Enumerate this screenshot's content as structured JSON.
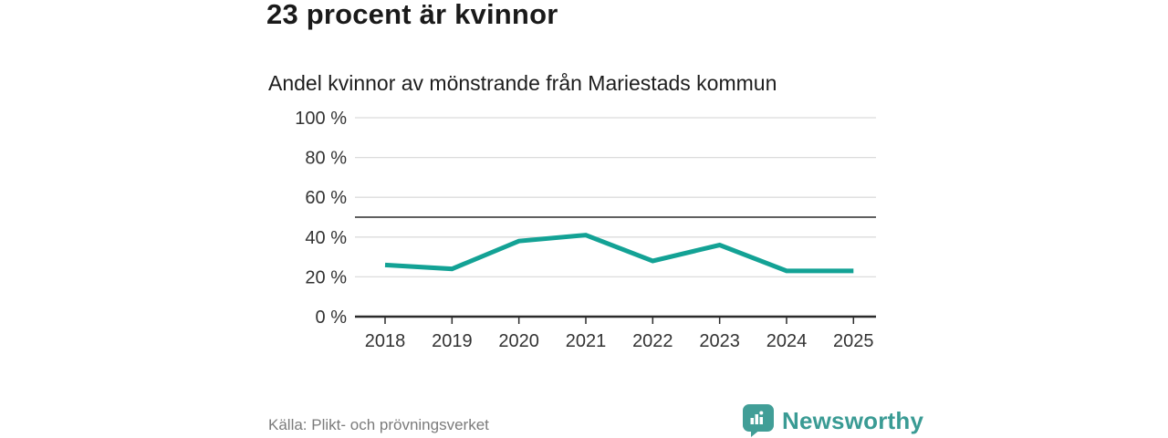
{
  "header": {
    "title": "23 procent är kvinnor",
    "subtitle": "Andel kvinnor av mönstrande från Mariestads kommun"
  },
  "chart_data": {
    "type": "line",
    "title": "Andel kvinnor av mönstrande från Mariestads kommun",
    "categories": [
      "2018",
      "2019",
      "2020",
      "2021",
      "2022",
      "2023",
      "2024",
      "2025"
    ],
    "series": [
      {
        "name": "Andel kvinnor av mönstrande",
        "values": [
          26,
          24,
          38,
          41,
          28,
          36,
          23,
          23
        ]
      }
    ],
    "unit": "%",
    "xlabel": "",
    "ylabel": "",
    "ylim": [
      0,
      100
    ],
    "yticks": [
      0,
      20,
      40,
      60,
      80,
      100
    ],
    "ytick_label_suffix": " %",
    "reference_line_y": 50,
    "grid": true,
    "legend_position": "none",
    "line_color": "#13a295",
    "gridline_color": "#dcdcdc",
    "reference_line_color": "#5f5f5f",
    "axis_color": "#2b2b2b",
    "tick_label_color": "#333333"
  },
  "footer": {
    "source": "Källa: Plikt- och prövningsverket",
    "brand_name": "Newsworthy",
    "brand_color": "#3a9b94",
    "brand_icon": "chart-speech-bubble-icon",
    "brand_icon_color": "#419e97"
  }
}
